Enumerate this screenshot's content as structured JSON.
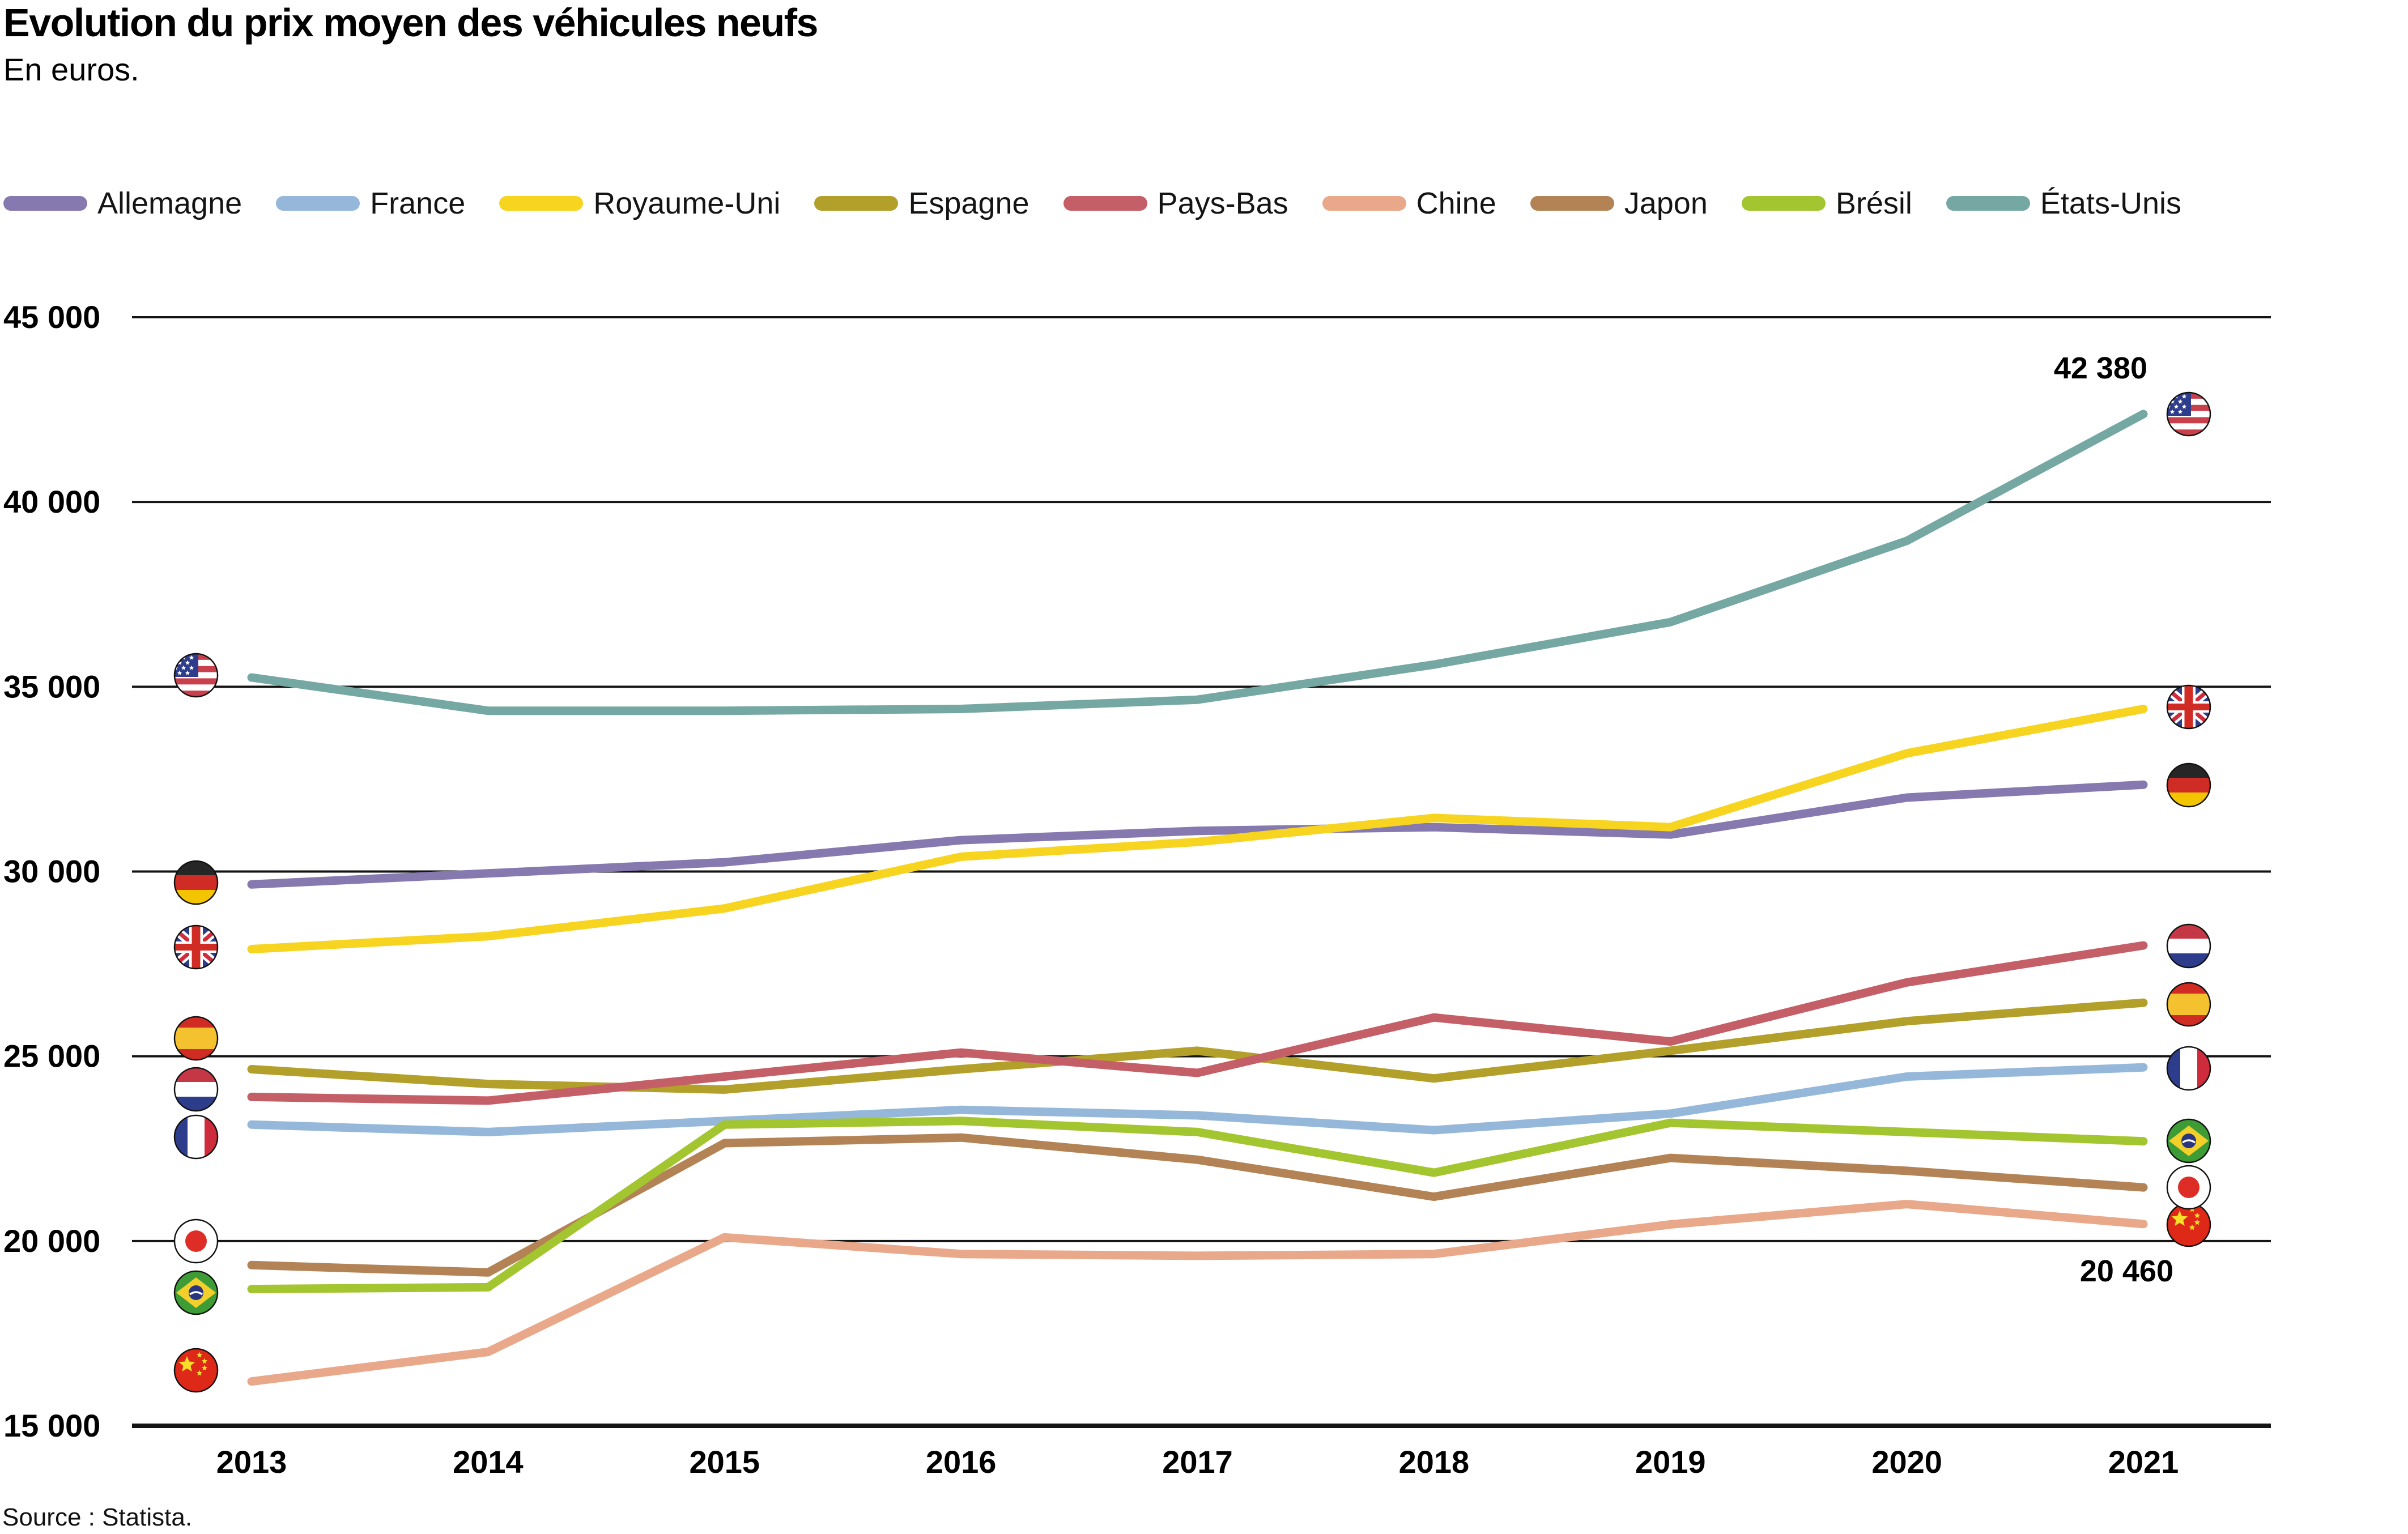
{
  "header": {
    "title": "Evolution du prix moyen des véhicules neufs",
    "subtitle": "En euros."
  },
  "source": {
    "label": "Source : Statista."
  },
  "chart_data": {
    "type": "line",
    "title": "Evolution du prix moyen des véhicules neufs",
    "subtitle": "En euros.",
    "unit": "euros",
    "grid": true,
    "legend_position": "top",
    "ylim": [
      15000,
      45000
    ],
    "x": [
      2013,
      2014,
      2015,
      2016,
      2017,
      2018,
      2019,
      2020,
      2021
    ],
    "x_labels": [
      "2013",
      "2014",
      "2015",
      "2016",
      "2017",
      "2018",
      "2019",
      "2020",
      "2021"
    ],
    "y_ticks": [
      {
        "value": 45000,
        "label": "45 000"
      },
      {
        "value": 40000,
        "label": "40 000"
      },
      {
        "value": 35000,
        "label": "35 000"
      },
      {
        "value": 30000,
        "label": "30 000"
      },
      {
        "value": 25000,
        "label": "25 000"
      },
      {
        "value": 20000,
        "label": "20 000"
      },
      {
        "value": 15000,
        "label": "15 000"
      }
    ],
    "series": [
      {
        "name": "Allemagne",
        "flag": "de",
        "color": "#8579AF",
        "values": [
          29650,
          29950,
          30250,
          30850,
          31100,
          31200,
          31000,
          32000,
          32350
        ]
      },
      {
        "name": "France",
        "flag": "fr",
        "color": "#95B8DA",
        "values": [
          23150,
          22950,
          23250,
          23550,
          23400,
          23000,
          23450,
          24450,
          24700
        ]
      },
      {
        "name": "Royaume-Uni",
        "flag": "gb",
        "color": "#F6D41F",
        "values": [
          27900,
          28250,
          29000,
          30400,
          30800,
          31450,
          31200,
          33200,
          34400
        ]
      },
      {
        "name": "Espagne",
        "flag": "es",
        "color": "#B2A02B",
        "values": [
          24650,
          24250,
          24100,
          24650,
          25150,
          24400,
          25150,
          25950,
          26450
        ]
      },
      {
        "name": "Pays-Bas",
        "flag": "nl",
        "color": "#C55F67",
        "values": [
          23900,
          23800,
          24450,
          25100,
          24550,
          26050,
          25400,
          27000,
          28000
        ]
      },
      {
        "name": "Chine",
        "flag": "cn",
        "color": "#E9A88A",
        "values": [
          16200,
          17000,
          20100,
          19650,
          19600,
          19650,
          20450,
          21000,
          20460
        ]
      },
      {
        "name": "Japon",
        "flag": "jp",
        "color": "#B38356",
        "values": [
          19350,
          19150,
          22650,
          22800,
          22200,
          21200,
          22250,
          21900,
          21450
        ]
      },
      {
        "name": "Brésil",
        "flag": "br",
        "color": "#A3C52F",
        "values": [
          18700,
          18750,
          23150,
          23250,
          22950,
          21850,
          23200,
          22950,
          22700
        ]
      },
      {
        "name": "États-Unis",
        "flag": "us",
        "color": "#75A8A3",
        "values": [
          35250,
          34350,
          34350,
          34400,
          34650,
          35600,
          36750,
          38950,
          42380
        ]
      }
    ],
    "annotations": [
      {
        "text": "42 380",
        "series": "États-Unis",
        "x": 2021
      },
      {
        "text": "20 460",
        "series": "Chine",
        "x": 2021
      }
    ]
  }
}
